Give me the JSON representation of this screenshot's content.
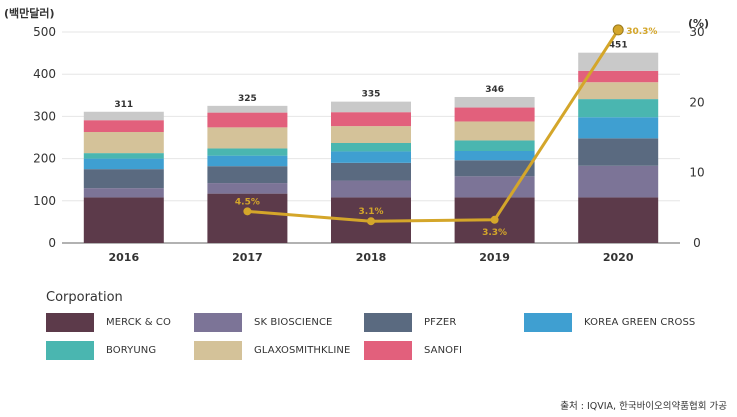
{
  "chart_data": {
    "type": "stacked bar with line (dual axis)",
    "left_unit_label": "(백만달러)",
    "right_unit_label": "(%)",
    "categories": [
      "2016",
      "2017",
      "2018",
      "2019",
      "2020"
    ],
    "left_ylim": [
      0,
      500
    ],
    "left_ticks": [
      "0",
      "100",
      "200",
      "300",
      "400",
      "500"
    ],
    "right_ylim": [
      0,
      30
    ],
    "right_ticks": [
      "0",
      "10",
      "20",
      "30"
    ],
    "totals": [
      "311",
      "325",
      "335",
      "346",
      "451"
    ],
    "stack_series": [
      {
        "name": "MERCK & CO",
        "color": "#5c3a4a",
        "values": [
          108,
          117,
          108,
          108,
          108
        ]
      },
      {
        "name": "SK BIOSCIENCE",
        "color": "#7c7497",
        "values": [
          22,
          25,
          40,
          50,
          75
        ]
      },
      {
        "name": "PFZER",
        "color": "#5a6a80",
        "values": [
          45,
          40,
          42,
          38,
          65
        ]
      },
      {
        "name": "KOREA GREEN CROSS",
        "color": "#3f9fd1",
        "values": [
          25,
          25,
          27,
          22,
          50
        ]
      },
      {
        "name": "BORYUNG",
        "color": "#4ab6b0",
        "values": [
          13,
          17,
          20,
          25,
          43
        ]
      },
      {
        "name": "GLAXOSMITHKLINE",
        "color": "#d4c299",
        "values": [
          50,
          50,
          40,
          45,
          40
        ]
      },
      {
        "name": "SANOFI",
        "color": "#e2607c",
        "values": [
          28,
          35,
          33,
          33,
          27
        ]
      },
      {
        "name": "",
        "color": "#c9c9c9",
        "values": [
          20,
          16,
          25,
          25,
          43
        ]
      }
    ],
    "line_series": {
      "color": "#d4a62a",
      "x": [
        "2017",
        "2018",
        "2019",
        "2020"
      ],
      "values": [
        4.5,
        3.1,
        3.3,
        30.3
      ],
      "labels": [
        "4.5%",
        "3.1%",
        "3.3%",
        "30.3%"
      ]
    },
    "legend_title": "Corporation",
    "legend": [
      "MERCK & CO",
      "SK BIOSCIENCE",
      "PFZER",
      "KOREA GREEN CROSS",
      "BORYUNG",
      "GLAXOSMITHKLINE",
      "SANOFI"
    ]
  },
  "source_text": "출처 : IQVIA, 한국바이오의약품협회 가공"
}
